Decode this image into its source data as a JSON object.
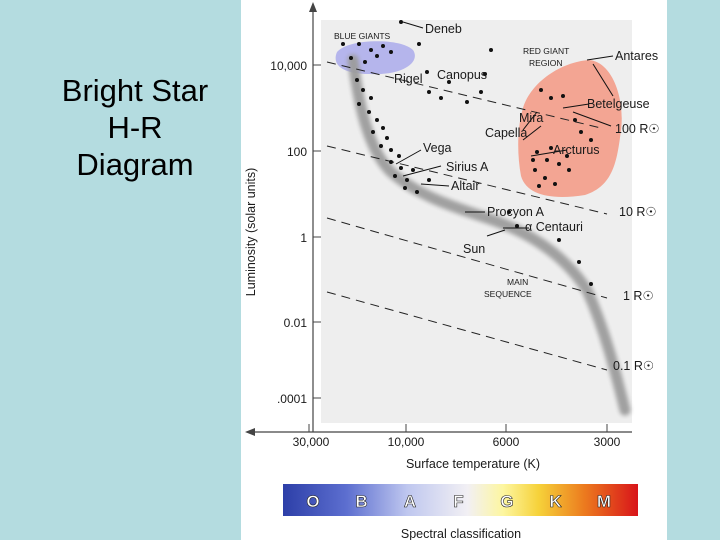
{
  "slide": {
    "title_lines": [
      "Bright Star",
      "H-R",
      "Diagram"
    ],
    "background_color": "#b4dce0"
  },
  "chart_data": {
    "type": "scatter",
    "x_axis": {
      "label": "Surface temperature (K)",
      "scale": "log",
      "reversed": true,
      "ticks": [
        "30,000",
        "10,000",
        "6000",
        "3000"
      ]
    },
    "y_axis": {
      "label": "Luminosity (solar units)",
      "scale": "log",
      "ticks": [
        "10,000",
        "100",
        "1",
        "0.01",
        ".0001"
      ]
    },
    "regions": [
      {
        "name": "BLUE GIANTS",
        "color": "#a8a8e8"
      },
      {
        "name": "RED GIANT REGION",
        "color": "#f39a86"
      },
      {
        "name": "MAIN SEQUENCE",
        "color": "#9a9a9a"
      }
    ],
    "radius_lines": [
      "100 R☉",
      "10 R☉",
      "1 R☉",
      "0.1 R☉"
    ],
    "labeled_stars": [
      "Deneb",
      "Antares",
      "Rigel",
      "Canopus",
      "Betelgeuse",
      "Mira",
      "Capella",
      "Vega",
      "Arcturus",
      "Sirius A",
      "Altair",
      "Procyon A",
      "α Centauri",
      "Sun"
    ],
    "spectral_bar": {
      "label": "Spectral classification",
      "classes": [
        "O",
        "B",
        "A",
        "F",
        "G",
        "K",
        "M"
      ]
    }
  }
}
